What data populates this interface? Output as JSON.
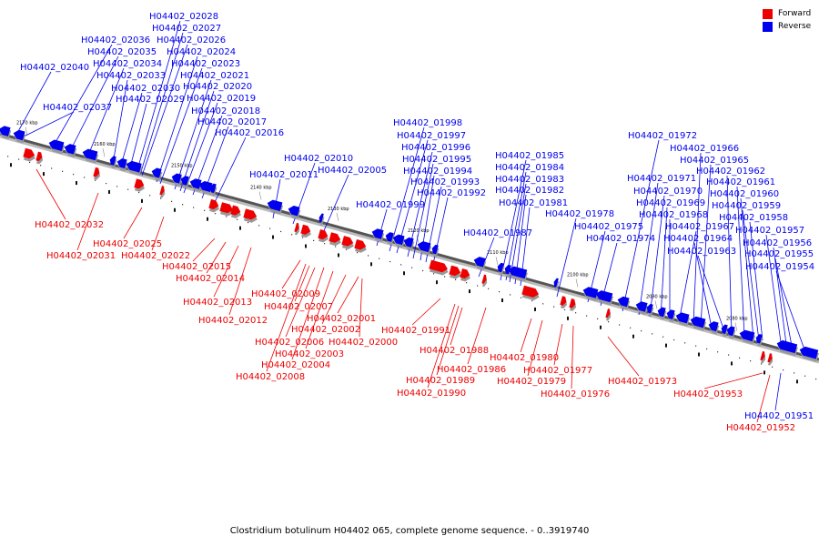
{
  "caption": "Clostridium botulinum H04402 065, complete genome sequence. - 0..3919740",
  "legend": [
    {
      "label": "Forward",
      "color": "#ee0000"
    },
    {
      "label": "Reverse",
      "color": "#0000ee"
    }
  ],
  "colors": {
    "forward": "#ee0000",
    "reverse": "#0000ee",
    "backbone": "#555555"
  },
  "scale_ticks": [
    "2170 kbp",
    "2160 kbp",
    "2150 kbp",
    "2140 kbp",
    "2130 kbp",
    "2120 kbp",
    "2110 kbp",
    "2100 kbp",
    "2090 kbp",
    "2080 kbp"
  ],
  "reverse_genes": [
    "H04402_02040",
    "H04402_02037",
    "H04402_02036",
    "H04402_02035",
    "H04402_02034",
    "H04402_02033",
    "H04402_02030",
    "H04402_02029",
    "H04402_02028",
    "H04402_02027",
    "H04402_02026",
    "H04402_02024",
    "H04402_02023",
    "H04402_02021",
    "H04402_02020",
    "H04402_02019",
    "H04402_02018",
    "H04402_02017",
    "H04402_02016",
    "H04402_02011",
    "H04402_02010",
    "H04402_02005",
    "H04402_01999",
    "H04402_01998",
    "H04402_01997",
    "H04402_01996",
    "H04402_01995",
    "H04402_01994",
    "H04402_01993",
    "H04402_01992",
    "H04402_01987",
    "H04402_01985",
    "H04402_01984",
    "H04402_01983",
    "H04402_01982",
    "H04402_01981",
    "H04402_01978",
    "H04402_01975",
    "H04402_01974",
    "H04402_01972",
    "H04402_01971",
    "H04402_01970",
    "H04402_01969",
    "H04402_01968",
    "H04402_01967",
    "H04402_01966",
    "H04402_01965",
    "H04402_01964",
    "H04402_01963",
    "H04402_01962",
    "H04402_01961",
    "H04402_01960",
    "H04402_01959",
    "H04402_01958",
    "H04402_01957",
    "H04402_01956",
    "H04402_01955",
    "H04402_01954",
    "H04402_01951"
  ],
  "forward_genes": [
    "H04402_02032",
    "H04402_02031",
    "H04402_02025",
    "H04402_02022",
    "H04402_02015",
    "H04402_02014",
    "H04402_02013",
    "H04402_02012",
    "H04402_02009",
    "H04402_02008",
    "H04402_02007",
    "H04402_02006",
    "H04402_02004",
    "H04402_02003",
    "H04402_02002",
    "H04402_02001",
    "H04402_02000",
    "H04402_01991",
    "H04402_01990",
    "H04402_01989",
    "H04402_01988",
    "H04402_01986",
    "H04402_01980",
    "H04402_01979",
    "H04402_01977",
    "H04402_01976",
    "H04402_01973",
    "H04402_01953",
    "H04402_01952"
  ]
}
